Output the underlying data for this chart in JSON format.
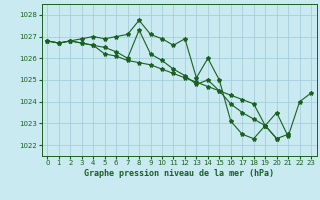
{
  "title": "Graphe pression niveau de la mer (hPa)",
  "bg_color": "#c8eaf0",
  "grid_color": "#a0c8d8",
  "line_color": "#1a6020",
  "marker_color": "#1a6020",
  "xlim": [
    -0.5,
    23.5
  ],
  "ylim": [
    1021.5,
    1028.5
  ],
  "yticks": [
    1022,
    1023,
    1024,
    1025,
    1026,
    1027,
    1028
  ],
  "xticks": [
    0,
    1,
    2,
    3,
    4,
    5,
    6,
    7,
    8,
    9,
    10,
    11,
    12,
    13,
    14,
    15,
    16,
    17,
    18,
    19,
    20,
    21,
    22,
    23
  ],
  "series": [
    [
      1026.8,
      1026.7,
      1026.8,
      1026.9,
      1027.0,
      1026.9,
      1027.0,
      1027.1,
      1027.75,
      1027.1,
      1026.9,
      1026.6,
      1026.9,
      1025.1,
      1026.0,
      1025.0,
      1023.1,
      1022.5,
      1022.3,
      1022.9,
      1023.5,
      1022.4,
      1024.0,
      1024.4
    ],
    [
      1026.8,
      1026.7,
      1026.8,
      1026.7,
      1026.6,
      1026.5,
      1026.3,
      1026.0,
      1027.3,
      1026.2,
      1025.9,
      1025.5,
      1025.2,
      1024.8,
      1025.0,
      1024.5,
      1023.9,
      1023.5,
      1023.2,
      1022.9,
      1022.3,
      1022.5,
      null,
      null
    ],
    [
      1026.8,
      1026.7,
      1026.8,
      1026.7,
      1026.6,
      1026.2,
      1026.1,
      1025.9,
      1025.8,
      1025.7,
      1025.5,
      1025.3,
      1025.1,
      1024.9,
      1024.7,
      1024.5,
      1024.3,
      1024.1,
      1023.9,
      1022.9,
      1022.3,
      null,
      null,
      null
    ]
  ]
}
